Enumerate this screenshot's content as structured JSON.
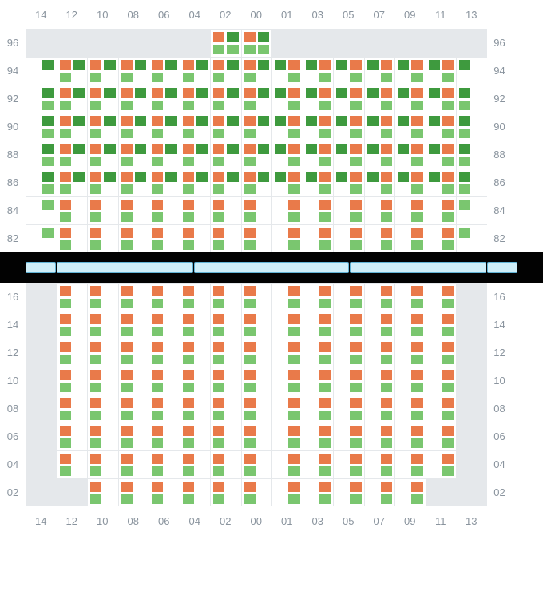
{
  "colors": {
    "orange": "#e97a4a",
    "light_green": "#7ac66f",
    "dark_green": "#3e9a3e",
    "grid_line": "#e5e8eb",
    "empty_cell": "#e5e8eb",
    "label": "#8a949e",
    "sep_bg": "#020202",
    "sep_fill": "#cfeef8",
    "sep_border": "#62b4d6"
  },
  "columns": [
    "14",
    "12",
    "10",
    "08",
    "06",
    "04",
    "02",
    "00",
    "01",
    "03",
    "05",
    "07",
    "09",
    "11",
    "13"
  ],
  "deck1": {
    "rows": [
      "96",
      "94",
      "92",
      "90",
      "88",
      "86",
      "84",
      "82"
    ],
    "cells": [
      [
        "E",
        "E",
        "E",
        "E",
        "E",
        "E",
        "od_ll",
        "od_ll",
        "E",
        "E",
        "E",
        "E",
        "E",
        "E",
        "E"
      ],
      [
        "_d__",
        "ol_od",
        "ol_od",
        "ol_od",
        "ol_od",
        "ol_od",
        "ol_od",
        "ol_od",
        "od_lo",
        "od_lo",
        "od_lo",
        "od_lo",
        "od_lo",
        "od_lo",
        "__d_"
      ],
      [
        "_d_l",
        "ol_od",
        "ol_od",
        "ol_od",
        "ol_od",
        "ol_od",
        "ol_od",
        "ol_od",
        "od_lo",
        "od_lo",
        "od_lo",
        "od_lo",
        "od_lo",
        "od_lo",
        "l_d_"
      ],
      [
        "_d_l",
        "ol_od",
        "ol_od",
        "ol_od",
        "ol_od",
        "ol_od",
        "ol_od",
        "ol_od",
        "od_lo",
        "od_lo",
        "od_lo",
        "od_lo",
        "od_lo",
        "od_lo",
        "l_d_"
      ],
      [
        "_d_l",
        "ol_od",
        "ol_od",
        "ol_od",
        "ol_od",
        "ol_od",
        "ol_od",
        "ol_od",
        "od_lo",
        "od_lo",
        "od_lo",
        "od_lo",
        "od_lo",
        "od_lo",
        "l_d_"
      ],
      [
        "_d_l",
        "ol_od",
        "ol_od",
        "ol_od",
        "ol_od",
        "ol_od",
        "ol_od",
        "ol_od",
        "od_lo",
        "od_lo",
        "od_lo",
        "od_lo",
        "od_lo",
        "od_lo",
        "l_d_"
      ],
      [
        "_l__",
        "o__l",
        "o__l",
        "o__l",
        "o__l",
        "o__l",
        "o__l",
        "o__l",
        "_o_l",
        "_o_l",
        "_o_l",
        "_o_l",
        "_o_l",
        "_o_l",
        "l___"
      ],
      [
        "_l__",
        "o__l",
        "o__l",
        "o__l",
        "o__l",
        "o__l",
        "o__l",
        "o__l",
        "_o_l",
        "_o_l",
        "_o_l",
        "_o_l",
        "_o_l",
        "_o_l",
        "l___"
      ]
    ]
  },
  "separator_segments": 4,
  "deck2": {
    "rows": [
      "16",
      "14",
      "12",
      "10",
      "08",
      "06",
      "04",
      "02"
    ],
    "cells": [
      [
        "E",
        "o__l",
        "o__l",
        "o__l",
        "o__l",
        "o__l",
        "o__l",
        "o__l",
        "_o_l",
        "_o_l",
        "_o_l",
        "_o_l",
        "_o_l",
        "_o_l",
        "E"
      ],
      [
        "E",
        "o__l",
        "o__l",
        "o__l",
        "o__l",
        "o__l",
        "o__l",
        "o__l",
        "_o_l",
        "_o_l",
        "_o_l",
        "_o_l",
        "_o_l",
        "_o_l",
        "E"
      ],
      [
        "E",
        "o__l",
        "o__l",
        "o__l",
        "o__l",
        "o__l",
        "o__l",
        "o__l",
        "_o_l",
        "_o_l",
        "_o_l",
        "_o_l",
        "_o_l",
        "_o_l",
        "E"
      ],
      [
        "E",
        "o__l",
        "o__l",
        "o__l",
        "o__l",
        "o__l",
        "o__l",
        "o__l",
        "_o_l",
        "_o_l",
        "_o_l",
        "_o_l",
        "_o_l",
        "_o_l",
        "E"
      ],
      [
        "E",
        "o__l",
        "o__l",
        "o__l",
        "o__l",
        "o__l",
        "o__l",
        "o__l",
        "_o_l",
        "_o_l",
        "_o_l",
        "_o_l",
        "_o_l",
        "_o_l",
        "E"
      ],
      [
        "E",
        "o__l",
        "o__l",
        "o__l",
        "o__l",
        "o__l",
        "o__l",
        "o__l",
        "_o_l",
        "_o_l",
        "_o_l",
        "_o_l",
        "_o_l",
        "_o_l",
        "E"
      ],
      [
        "E",
        "o__l",
        "o__l",
        "o__l",
        "o__l",
        "o__l",
        "o__l",
        "o__l",
        "_o_l",
        "_o_l",
        "_o_l",
        "_o_l",
        "_o_l",
        "_o_l",
        "E"
      ],
      [
        "E",
        "E",
        "o__l",
        "o__l",
        "o__l",
        "o__l",
        "o__l",
        "o__l",
        "_o_l",
        "_o_l",
        "_o_l",
        "_o_l",
        "_o_l",
        "E",
        "E"
      ]
    ]
  }
}
